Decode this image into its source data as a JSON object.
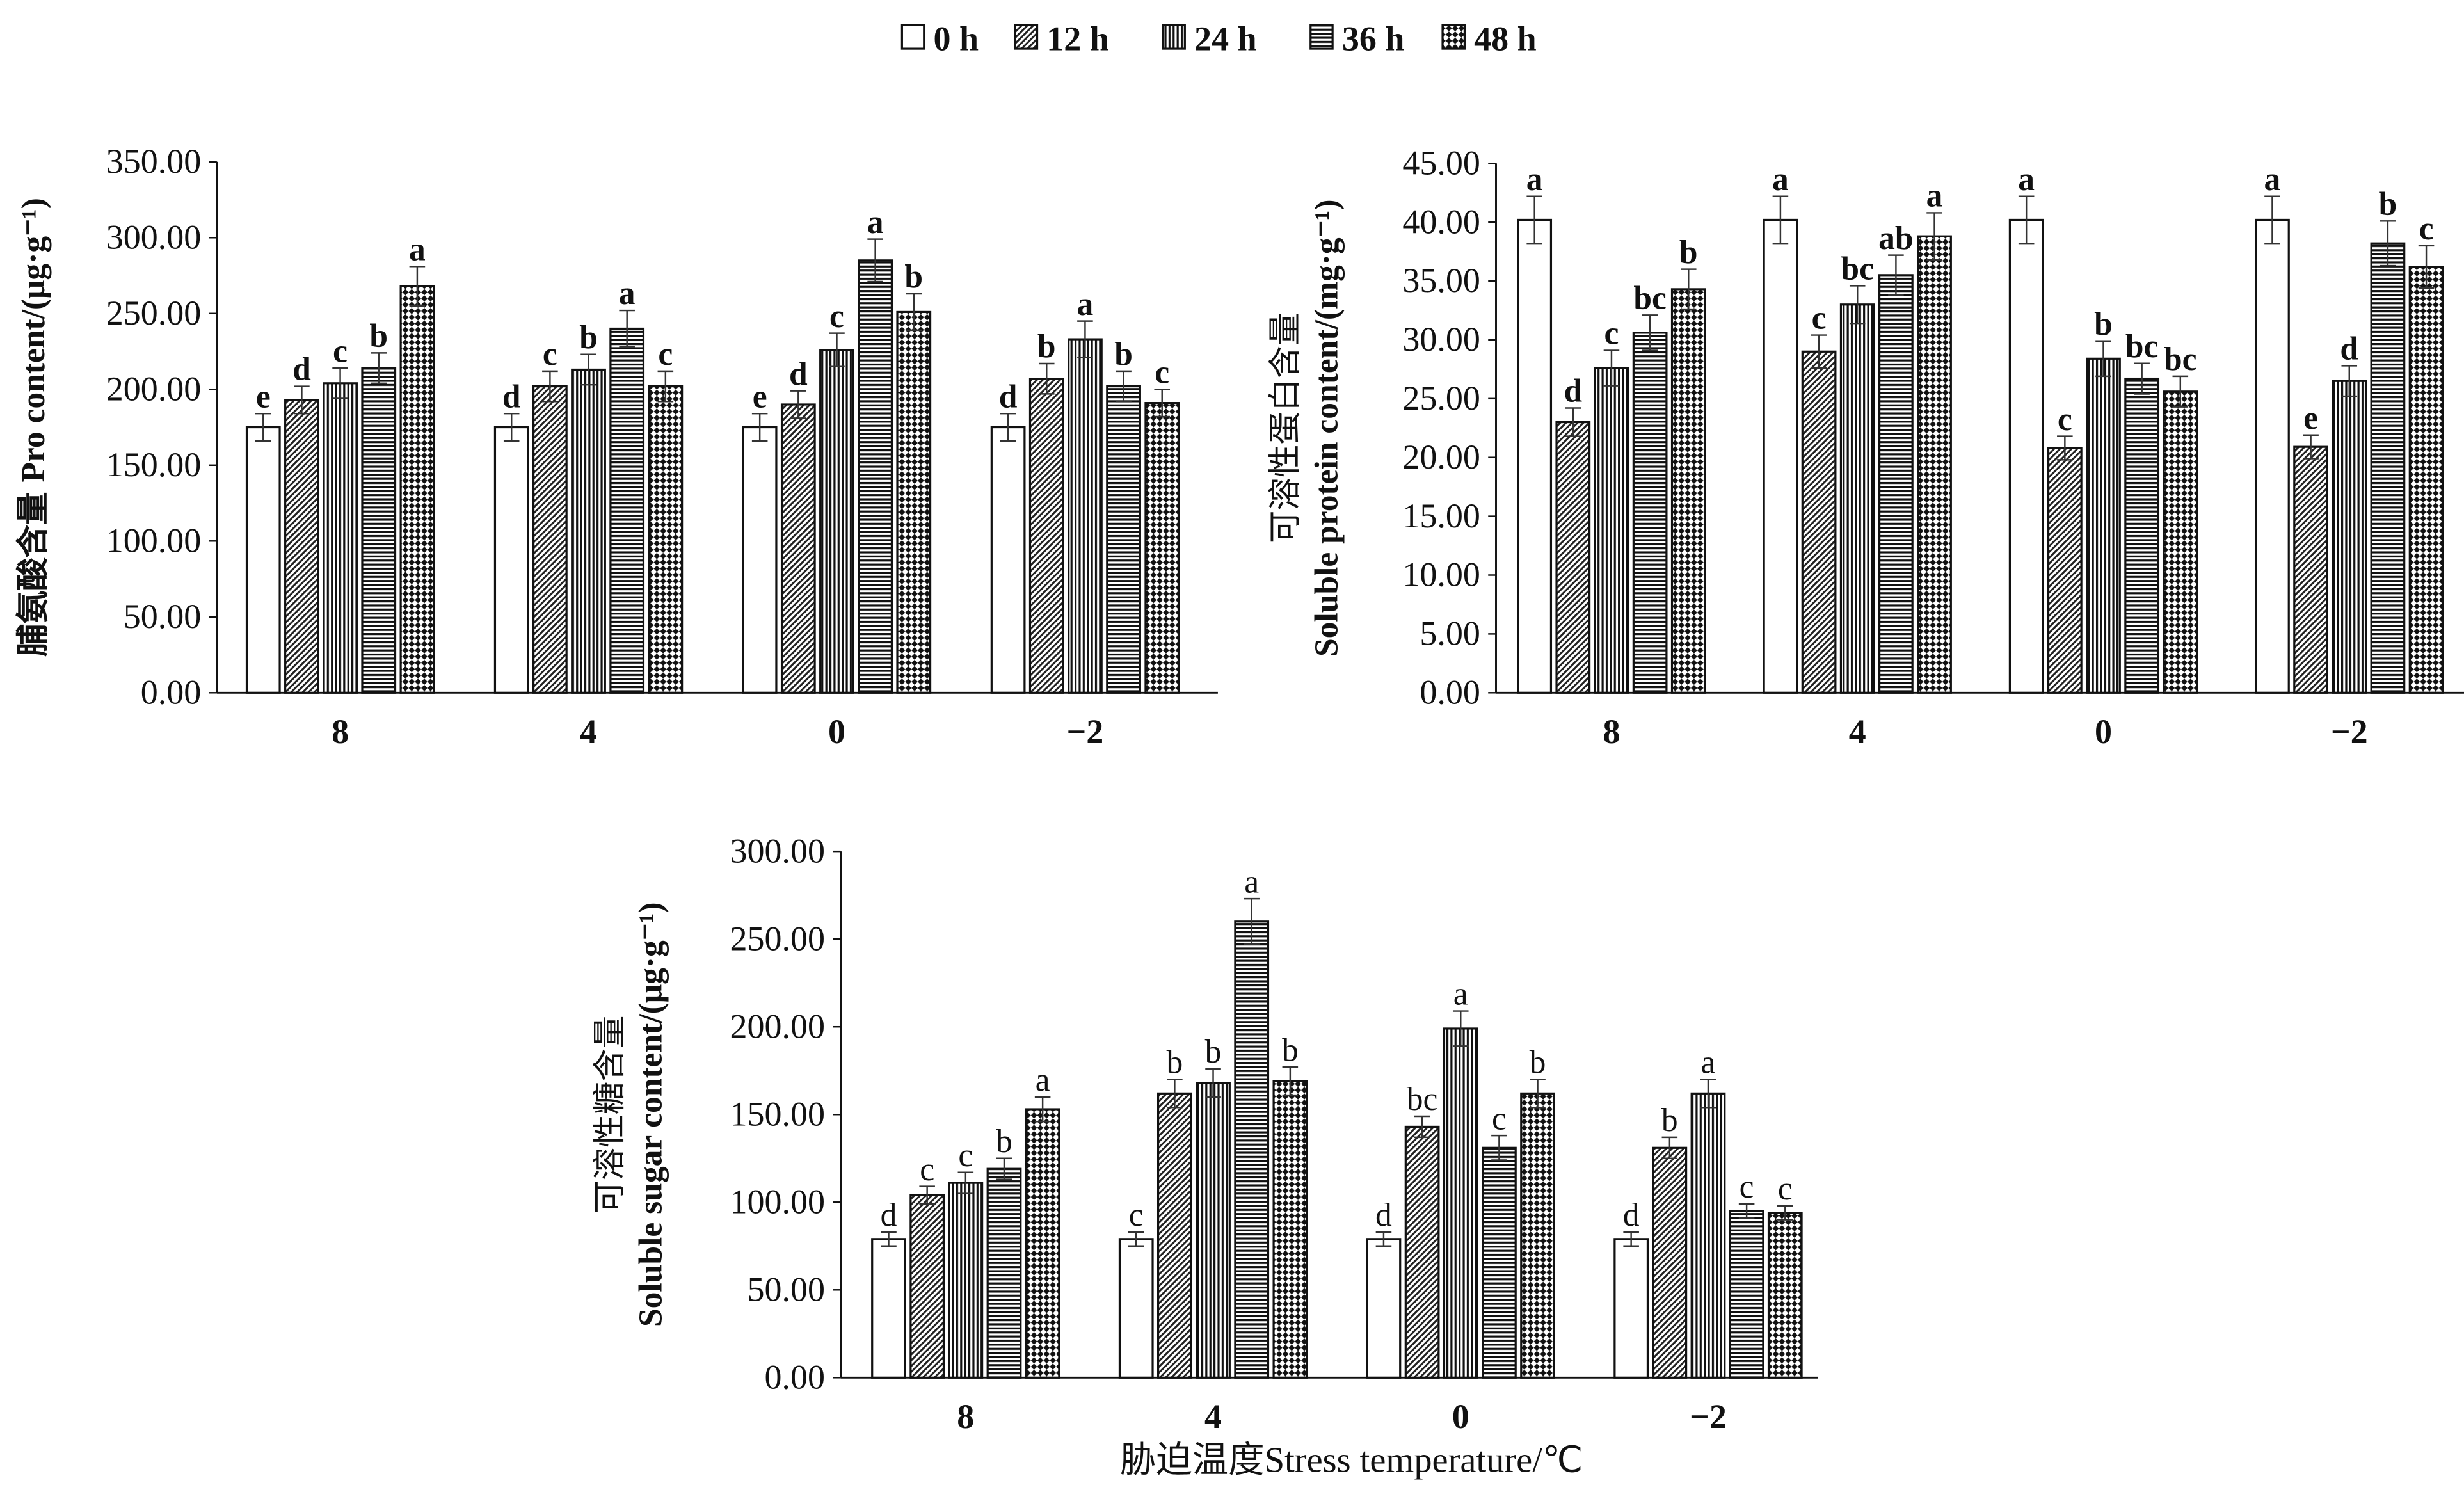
{
  "legend": [
    "0 h",
    "12 h",
    "24 h",
    "36 h",
    "48 h"
  ],
  "xlabel_common": "胁迫温度Stress temperature/℃",
  "chart_data": [
    {
      "type": "bar",
      "title": "",
      "ylabel_cn": "脯氨酸含量",
      "ylabel": "Pro content/(μg·g⁻¹)",
      "xlabel": "",
      "categories": [
        "8",
        "4",
        "0",
        "−2"
      ],
      "ylim": [
        0,
        350
      ],
      "yticks": [
        "0.00",
        "50.00",
        "100.00",
        "150.00",
        "200.00",
        "250.00",
        "300.00",
        "350.00"
      ],
      "series": [
        {
          "name": "0 h",
          "values": [
            175,
            175,
            175,
            175
          ],
          "errors": [
            9,
            9,
            9,
            9
          ],
          "letters": [
            "e",
            "d",
            "e",
            "d"
          ]
        },
        {
          "name": "12 h",
          "values": [
            193,
            202,
            190,
            207
          ],
          "errors": [
            9,
            10,
            9,
            10
          ],
          "letters": [
            "d",
            "c",
            "d",
            "b"
          ]
        },
        {
          "name": "24 h",
          "values": [
            204,
            213,
            226,
            233
          ],
          "errors": [
            10,
            10,
            11,
            12
          ],
          "letters": [
            "c",
            "b",
            "c",
            "a"
          ]
        },
        {
          "name": "36 h",
          "values": [
            214,
            240,
            285,
            202
          ],
          "errors": [
            10,
            12,
            14,
            10
          ],
          "letters": [
            "b",
            "a",
            "a",
            "b"
          ]
        },
        {
          "name": "48 h",
          "values": [
            268,
            202,
            251,
            191
          ],
          "errors": [
            13,
            10,
            12,
            9
          ],
          "letters": [
            "a",
            "c",
            "b",
            "c"
          ]
        }
      ]
    },
    {
      "type": "bar",
      "title": "",
      "ylabel_cn": "可溶性蛋白含量",
      "ylabel": "Soluble protein content/(mg·g⁻¹)",
      "xlabel": "",
      "categories": [
        "8",
        "4",
        "0",
        "−2"
      ],
      "ylim": [
        0,
        45
      ],
      "yticks": [
        "0.00",
        "5.00",
        "10.00",
        "15.00",
        "20.00",
        "25.00",
        "30.00",
        "35.00",
        "40.00",
        "45.00"
      ],
      "series": [
        {
          "name": "0 h",
          "values": [
            40.2,
            40.2,
            40.2,
            40.2
          ],
          "errors": [
            2.0,
            2.0,
            2.0,
            2.0
          ],
          "letters": [
            "a",
            "a",
            "a",
            "a"
          ]
        },
        {
          "name": "12 h",
          "values": [
            23.0,
            29.0,
            20.8,
            20.9
          ],
          "errors": [
            1.2,
            1.4,
            1.0,
            1.0
          ],
          "letters": [
            "d",
            "c",
            "c",
            "e"
          ]
        },
        {
          "name": "24 h",
          "values": [
            27.6,
            33.0,
            28.4,
            26.5
          ],
          "errors": [
            1.5,
            1.6,
            1.5,
            1.3
          ],
          "letters": [
            "c",
            "bc",
            "b",
            "d"
          ]
        },
        {
          "name": "36 h",
          "values": [
            30.6,
            35.5,
            26.7,
            38.2
          ],
          "errors": [
            1.5,
            1.7,
            1.3,
            1.9
          ],
          "letters": [
            "bc",
            "ab",
            "bc",
            "b"
          ]
        },
        {
          "name": "48 h",
          "values": [
            34.3,
            38.8,
            25.6,
            36.2
          ],
          "errors": [
            1.7,
            2.0,
            1.3,
            1.8
          ],
          "letters": [
            "b",
            "a",
            "bc",
            "c"
          ]
        }
      ]
    },
    {
      "type": "bar",
      "title": "",
      "ylabel_cn": "可溶性糖含量",
      "ylabel": "Soluble sugar content/(μg·g⁻¹)",
      "xlabel": "胁迫温度Stress temperature/℃",
      "categories": [
        "8",
        "4",
        "0",
        "−2"
      ],
      "ylim": [
        0,
        300
      ],
      "yticks": [
        "0.00",
        "50.00",
        "100.00",
        "150.00",
        "200.00",
        "250.00",
        "300.00"
      ],
      "series": [
        {
          "name": "0 h",
          "values": [
            79,
            79,
            79,
            79
          ],
          "errors": [
            4,
            4,
            4,
            4
          ],
          "letters": [
            "d",
            "c",
            "d",
            "d"
          ]
        },
        {
          "name": "12 h",
          "values": [
            104,
            162,
            143,
            131
          ],
          "errors": [
            5,
            8,
            6,
            6
          ],
          "letters": [
            "c",
            "b",
            "bc",
            "b"
          ]
        },
        {
          "name": "24 h",
          "values": [
            111,
            168,
            199,
            162
          ],
          "errors": [
            6,
            8,
            10,
            8
          ],
          "letters": [
            "c",
            "b",
            "a",
            "a"
          ]
        },
        {
          "name": "36 h",
          "values": [
            119,
            260,
            131,
            95
          ],
          "errors": [
            6,
            13,
            7,
            4
          ],
          "letters": [
            "b",
            "a",
            "c",
            "c"
          ]
        },
        {
          "name": "48 h",
          "values": [
            153,
            169,
            162,
            94
          ],
          "errors": [
            7,
            8,
            8,
            4
          ],
          "letters": [
            "a",
            "b",
            "b",
            "c"
          ]
        }
      ]
    }
  ]
}
